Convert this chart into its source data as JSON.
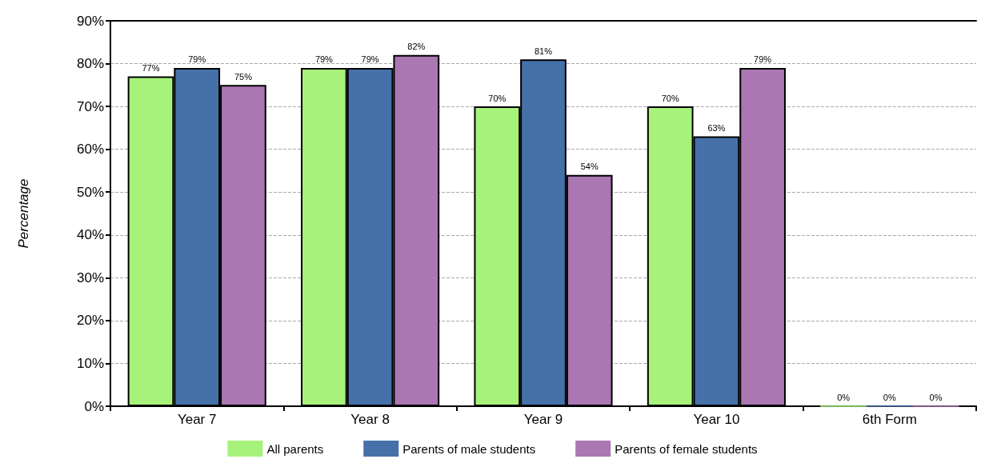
{
  "chart_data": {
    "type": "bar",
    "ylabel": "Percentage",
    "categories": [
      "Year 7",
      "Year 8",
      "Year 9",
      "Year 10",
      "6th Form"
    ],
    "series": [
      {
        "name": "All parents",
        "color": "#a6f27a",
        "values": [
          77,
          79,
          70,
          70,
          0
        ],
        "value_labels": [
          "77%",
          "79%",
          "70%",
          "70%",
          "0%"
        ]
      },
      {
        "name": "Parents of male students",
        "color": "#4571a8",
        "values": [
          79,
          79,
          81,
          63,
          0
        ],
        "value_labels": [
          "79%",
          "79%",
          "81%",
          "63%",
          "0%"
        ]
      },
      {
        "name": "Parents of female students",
        "color": "#ab77b2",
        "values": [
          75,
          82,
          54,
          79,
          0
        ],
        "value_labels": [
          "75%",
          "82%",
          "54%",
          "79%",
          "0%"
        ]
      }
    ],
    "ylim": [
      0,
      90
    ],
    "yticks": [
      {
        "value": 0,
        "label": "0%"
      },
      {
        "value": 10,
        "label": "10%"
      },
      {
        "value": 20,
        "label": "20%"
      },
      {
        "value": 30,
        "label": "30%"
      },
      {
        "value": 40,
        "label": "40%"
      },
      {
        "value": 50,
        "label": "50%"
      },
      {
        "value": 60,
        "label": "60%"
      },
      {
        "value": 70,
        "label": "70%"
      },
      {
        "value": 80,
        "label": "80%"
      },
      {
        "value": 90,
        "label": "90%"
      }
    ],
    "grid": "y",
    "legend": "bottom"
  }
}
